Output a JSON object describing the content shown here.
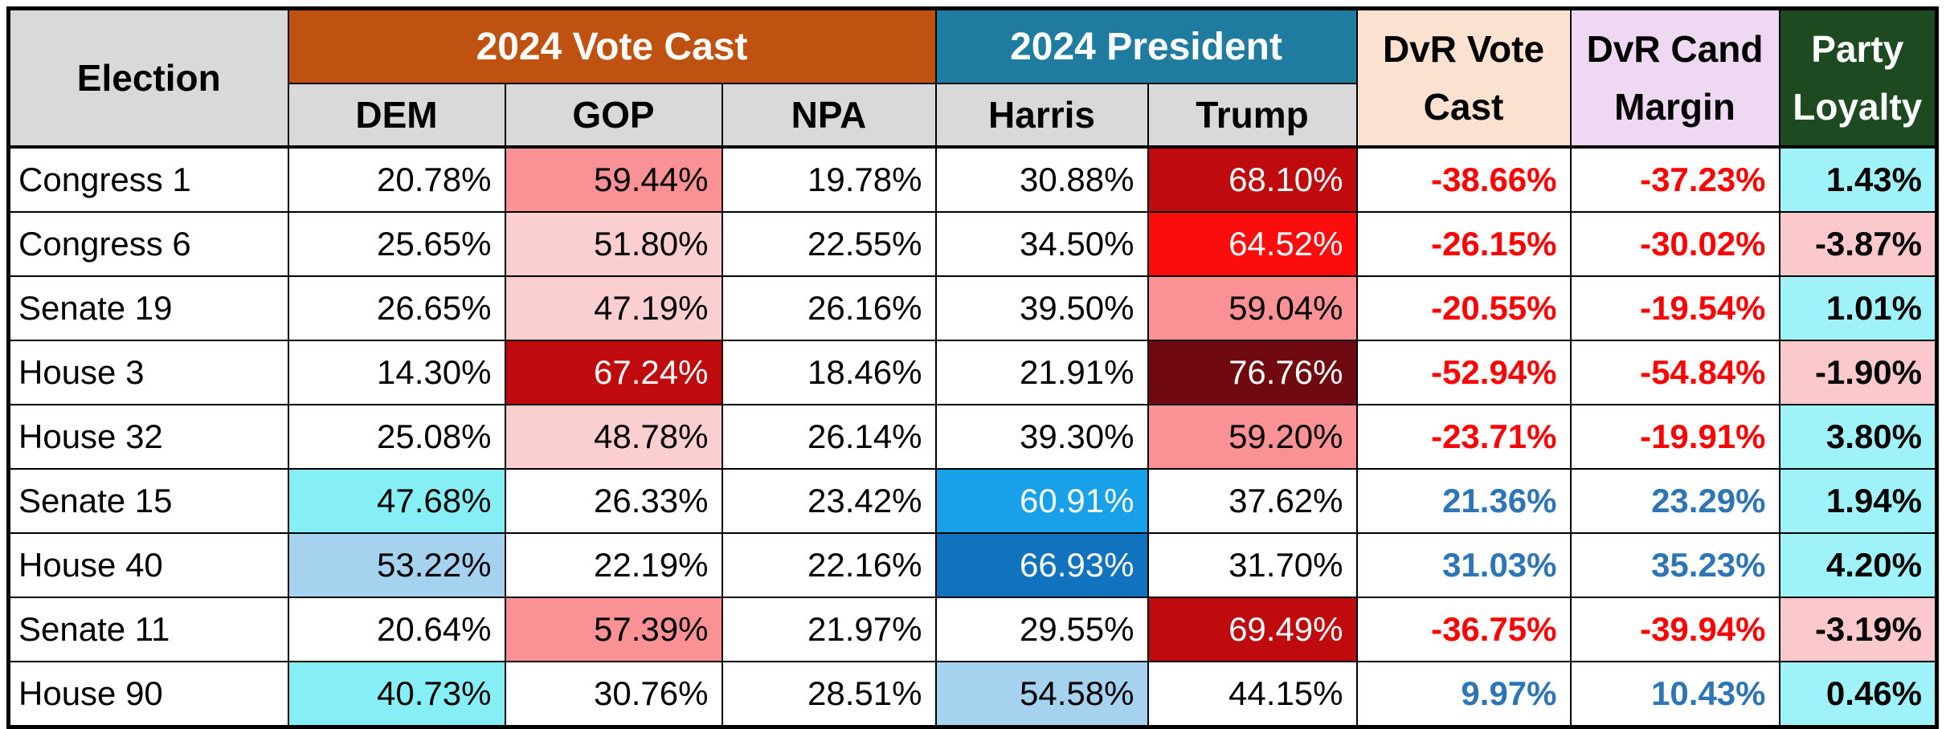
{
  "colors": {
    "header_group_vote_cast": "#BF5211",
    "header_group_president": "#1F7BA0",
    "header_gray": "#D9D9D9",
    "header_dvr_vote": "#FBE2D0",
    "header_dvr_cand": "#EFD9F2",
    "header_party_loyalty": "#1D4A21",
    "cell_gop_strong": "#FA9195",
    "cell_gop_light": "#FBCFCF",
    "cell_red_dark": "#C00B0E",
    "cell_red_bright": "#FB0D0D",
    "cell_red_maroon": "#700A10",
    "cell_blue_azure": "#18A0E8",
    "cell_blue_deep": "#1173BE",
    "cell_blue_light": "#A5D3EF",
    "cell_cyan": "#86EEF5",
    "cell_loyalty_cyan": "#9FF2F7",
    "cell_loyalty_pink": "#FBC9CB",
    "text_negative": "#FF0000",
    "text_positive": "#2E75B6",
    "grid": "#000000"
  },
  "header": {
    "election": "Election",
    "vote_cast_group": "2024 Vote Cast",
    "president_group": "2024 President",
    "dem": "DEM",
    "gop": "GOP",
    "npa": "NPA",
    "harris": "Harris",
    "trump": "Trump",
    "dvr_vote_line1": "DvR Vote",
    "dvr_vote_line2": "Cast",
    "dvr_cand_line1": "DvR Cand",
    "dvr_cand_line2": "Margin",
    "party_line1": "Party",
    "party_line2": "Loyalty"
  },
  "chart_data": {
    "type": "table",
    "columns": [
      "Election",
      "2024 Vote Cast DEM",
      "2024 Vote Cast GOP",
      "2024 Vote Cast NPA",
      "2024 President Harris",
      "2024 President Trump",
      "DvR Vote Cast",
      "DvR Cand Margin",
      "Party Loyalty"
    ],
    "column_keys": [
      "election",
      "dem",
      "gop",
      "npa",
      "harris",
      "trump",
      "dvr-vote-cast",
      "dvr-cand-margin",
      "party-loyalty"
    ],
    "rows": [
      {
        "election": "Congress 1",
        "cells": [
          {
            "v": "20.78%"
          },
          {
            "v": "59.44%",
            "c": "salmon"
          },
          {
            "v": "19.78%"
          },
          {
            "v": "30.88%"
          },
          {
            "v": "68.10%",
            "c": "reddark"
          },
          {
            "v": "-38.66%",
            "c": "negnum"
          },
          {
            "v": "-37.23%",
            "c": "negnum"
          },
          {
            "v": "1.43%",
            "c": "loyalcyan"
          }
        ]
      },
      {
        "election": "Congress 6",
        "cells": [
          {
            "v": "25.65%"
          },
          {
            "v": "51.80%",
            "c": "pinklight"
          },
          {
            "v": "22.55%"
          },
          {
            "v": "34.50%"
          },
          {
            "v": "64.52%",
            "c": "redbright"
          },
          {
            "v": "-26.15%",
            "c": "negnum"
          },
          {
            "v": "-30.02%",
            "c": "negnum"
          },
          {
            "v": "-3.87%",
            "c": "loyalpink"
          }
        ]
      },
      {
        "election": "Senate 19",
        "cells": [
          {
            "v": "26.65%"
          },
          {
            "v": "47.19%",
            "c": "pinklight"
          },
          {
            "v": "26.16%"
          },
          {
            "v": "39.50%"
          },
          {
            "v": "59.04%",
            "c": "salmon"
          },
          {
            "v": "-20.55%",
            "c": "negnum"
          },
          {
            "v": "-19.54%",
            "c": "negnum"
          },
          {
            "v": "1.01%",
            "c": "loyalcyan"
          }
        ]
      },
      {
        "election": "House 3",
        "cells": [
          {
            "v": "14.30%"
          },
          {
            "v": "67.24%",
            "c": "reddark"
          },
          {
            "v": "18.46%"
          },
          {
            "v": "21.91%"
          },
          {
            "v": "76.76%",
            "c": "maroon"
          },
          {
            "v": "-52.94%",
            "c": "negnum"
          },
          {
            "v": "-54.84%",
            "c": "negnum"
          },
          {
            "v": "-1.90%",
            "c": "loyalpink"
          }
        ]
      },
      {
        "election": "House 32",
        "cells": [
          {
            "v": "25.08%"
          },
          {
            "v": "48.78%",
            "c": "pinklight"
          },
          {
            "v": "26.14%"
          },
          {
            "v": "39.30%"
          },
          {
            "v": "59.20%",
            "c": "salmon"
          },
          {
            "v": "-23.71%",
            "c": "negnum"
          },
          {
            "v": "-19.91%",
            "c": "negnum"
          },
          {
            "v": "3.80%",
            "c": "loyalcyan"
          }
        ]
      },
      {
        "election": "Senate 15",
        "cells": [
          {
            "v": "47.68%",
            "c": "cyan"
          },
          {
            "v": "26.33%"
          },
          {
            "v": "23.42%"
          },
          {
            "v": "60.91%",
            "c": "azure"
          },
          {
            "v": "37.62%"
          },
          {
            "v": "21.36%",
            "c": "posnum"
          },
          {
            "v": "23.29%",
            "c": "posnum"
          },
          {
            "v": "1.94%",
            "c": "loyalcyan"
          }
        ]
      },
      {
        "election": "House 40",
        "cells": [
          {
            "v": "53.22%",
            "c": "bluelight"
          },
          {
            "v": "22.19%"
          },
          {
            "v": "22.16%"
          },
          {
            "v": "66.93%",
            "c": "bluedeep"
          },
          {
            "v": "31.70%"
          },
          {
            "v": "31.03%",
            "c": "posnum"
          },
          {
            "v": "35.23%",
            "c": "posnum"
          },
          {
            "v": "4.20%",
            "c": "loyalcyan"
          }
        ]
      },
      {
        "election": "Senate 11",
        "cells": [
          {
            "v": "20.64%"
          },
          {
            "v": "57.39%",
            "c": "salmon"
          },
          {
            "v": "21.97%"
          },
          {
            "v": "29.55%"
          },
          {
            "v": "69.49%",
            "c": "reddark"
          },
          {
            "v": "-36.75%",
            "c": "negnum"
          },
          {
            "v": "-39.94%",
            "c": "negnum"
          },
          {
            "v": "-3.19%",
            "c": "loyalpink"
          }
        ]
      },
      {
        "election": "House 90",
        "cells": [
          {
            "v": "40.73%",
            "c": "cyan"
          },
          {
            "v": "30.76%"
          },
          {
            "v": "28.51%"
          },
          {
            "v": "54.58%",
            "c": "bluelight"
          },
          {
            "v": "44.15%"
          },
          {
            "v": "9.97%",
            "c": "posnum"
          },
          {
            "v": "10.43%",
            "c": "posnum"
          },
          {
            "v": "0.46%",
            "c": "loyalcyan"
          }
        ]
      }
    ]
  }
}
